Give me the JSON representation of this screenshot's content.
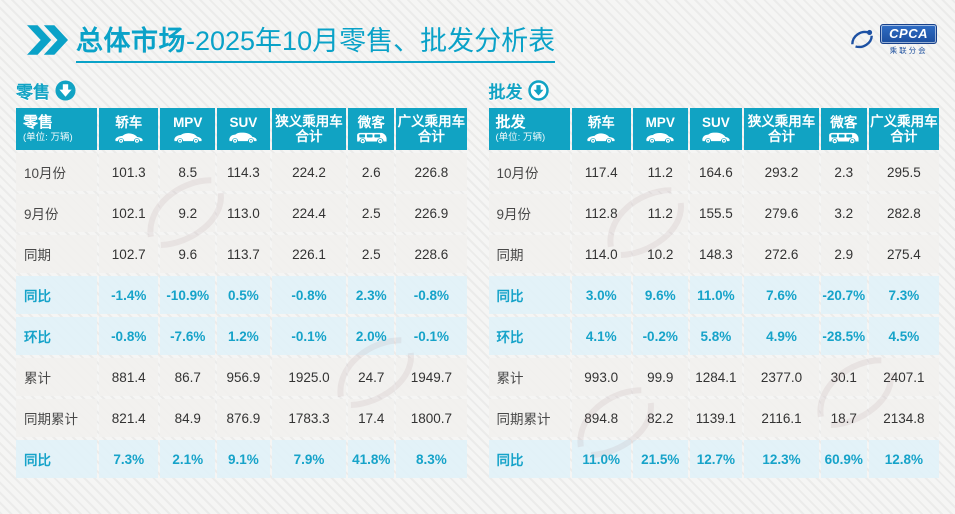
{
  "page": {
    "title_bold": "总体市场",
    "title_rest": "-2025年10月零售、批发分析表"
  },
  "logo": {
    "acronym": "CPCA",
    "subtext": "乘联分会"
  },
  "colors": {
    "accent_teal": "#11a3c4",
    "title_teal": "#0aa2c8",
    "percent_text": "#16a3c9",
    "percent_row_bg": "#e2f1f8",
    "data_row_bg": "#f1f0ee",
    "logo_blue": "#1c4f9e"
  },
  "tables": [
    {
      "section_label": "零售",
      "corner_label": "零售",
      "corner_note": "(单位: 万辆)",
      "columns": [
        {
          "label": "轿车"
        },
        {
          "label": "MPV"
        },
        {
          "label": "SUV"
        },
        {
          "label": "狭义乘用车合计"
        },
        {
          "label": "微客"
        },
        {
          "label": "广义乘用车合计"
        }
      ],
      "rows": [
        {
          "label": "10月份",
          "type": "data",
          "values": [
            "101.3",
            "8.5",
            "114.3",
            "224.2",
            "2.6",
            "226.8"
          ]
        },
        {
          "label": "9月份",
          "type": "data",
          "values": [
            "102.1",
            "9.2",
            "113.0",
            "224.4",
            "2.5",
            "226.9"
          ]
        },
        {
          "label": "同期",
          "type": "data",
          "values": [
            "102.7",
            "9.6",
            "113.7",
            "226.1",
            "2.5",
            "228.6"
          ]
        },
        {
          "label": "同比",
          "type": "percent",
          "values": [
            "-1.4%",
            "-10.9%",
            "0.5%",
            "-0.8%",
            "2.3%",
            "-0.8%"
          ]
        },
        {
          "label": "环比",
          "type": "percent",
          "values": [
            "-0.8%",
            "-7.6%",
            "1.2%",
            "-0.1%",
            "2.0%",
            "-0.1%"
          ]
        },
        {
          "label": "累计",
          "type": "data",
          "values": [
            "881.4",
            "86.7",
            "956.9",
            "1925.0",
            "24.7",
            "1949.7"
          ]
        },
        {
          "label": "同期累计",
          "type": "data",
          "values": [
            "821.4",
            "84.9",
            "876.9",
            "1783.3",
            "17.4",
            "1800.7"
          ]
        },
        {
          "label": "同比",
          "type": "percent",
          "values": [
            "7.3%",
            "2.1%",
            "9.1%",
            "7.9%",
            "41.8%",
            "8.3%"
          ]
        }
      ]
    },
    {
      "section_label": "批发",
      "corner_label": "批发",
      "corner_note": "(单位: 万辆)",
      "columns": [
        {
          "label": "轿车"
        },
        {
          "label": "MPV"
        },
        {
          "label": "SUV"
        },
        {
          "label": "狭义乘用车合计"
        },
        {
          "label": "微客"
        },
        {
          "label": "广义乘用车合计"
        }
      ],
      "rows": [
        {
          "label": "10月份",
          "type": "data",
          "values": [
            "117.4",
            "11.2",
            "164.6",
            "293.2",
            "2.3",
            "295.5"
          ]
        },
        {
          "label": "9月份",
          "type": "data",
          "values": [
            "112.8",
            "11.2",
            "155.5",
            "279.6",
            "3.2",
            "282.8"
          ]
        },
        {
          "label": "同期",
          "type": "data",
          "values": [
            "114.0",
            "10.2",
            "148.3",
            "272.6",
            "2.9",
            "275.4"
          ]
        },
        {
          "label": "同比",
          "type": "percent",
          "values": [
            "3.0%",
            "9.6%",
            "11.0%",
            "7.6%",
            "-20.7%",
            "7.3%"
          ]
        },
        {
          "label": "环比",
          "type": "percent",
          "values": [
            "4.1%",
            "-0.2%",
            "5.8%",
            "4.9%",
            "-28.5%",
            "4.5%"
          ]
        },
        {
          "label": "累计",
          "type": "data",
          "values": [
            "993.0",
            "99.9",
            "1284.1",
            "2377.0",
            "30.1",
            "2407.1"
          ]
        },
        {
          "label": "同期累计",
          "type": "data",
          "values": [
            "894.8",
            "82.2",
            "1139.1",
            "2116.1",
            "18.7",
            "2134.8"
          ]
        },
        {
          "label": "同比",
          "type": "percent",
          "values": [
            "11.0%",
            "21.5%",
            "12.7%",
            "12.3%",
            "60.9%",
            "12.8%"
          ]
        }
      ]
    }
  ]
}
